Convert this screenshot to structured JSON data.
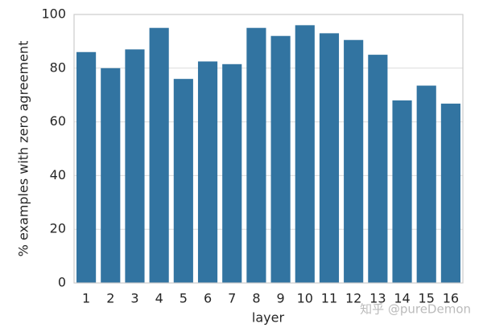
{
  "chart_data": {
    "type": "bar",
    "x_label": "layer",
    "y_label": "% examples with zero agreement",
    "categories": [
      "1",
      "2",
      "3",
      "4",
      "5",
      "6",
      "7",
      "8",
      "9",
      "10",
      "11",
      "12",
      "13",
      "14",
      "15",
      "16"
    ],
    "values": [
      86,
      80,
      87,
      95,
      76,
      82.5,
      81.5,
      95,
      92,
      96,
      93,
      90.5,
      85,
      68,
      73.5,
      66.8
    ],
    "color": "#3274a1",
    "ylim": [
      0,
      100
    ],
    "yticks": [
      0,
      20,
      40,
      60,
      80,
      100
    ],
    "grid": true,
    "watermark": "知乎 @pureDemon"
  }
}
